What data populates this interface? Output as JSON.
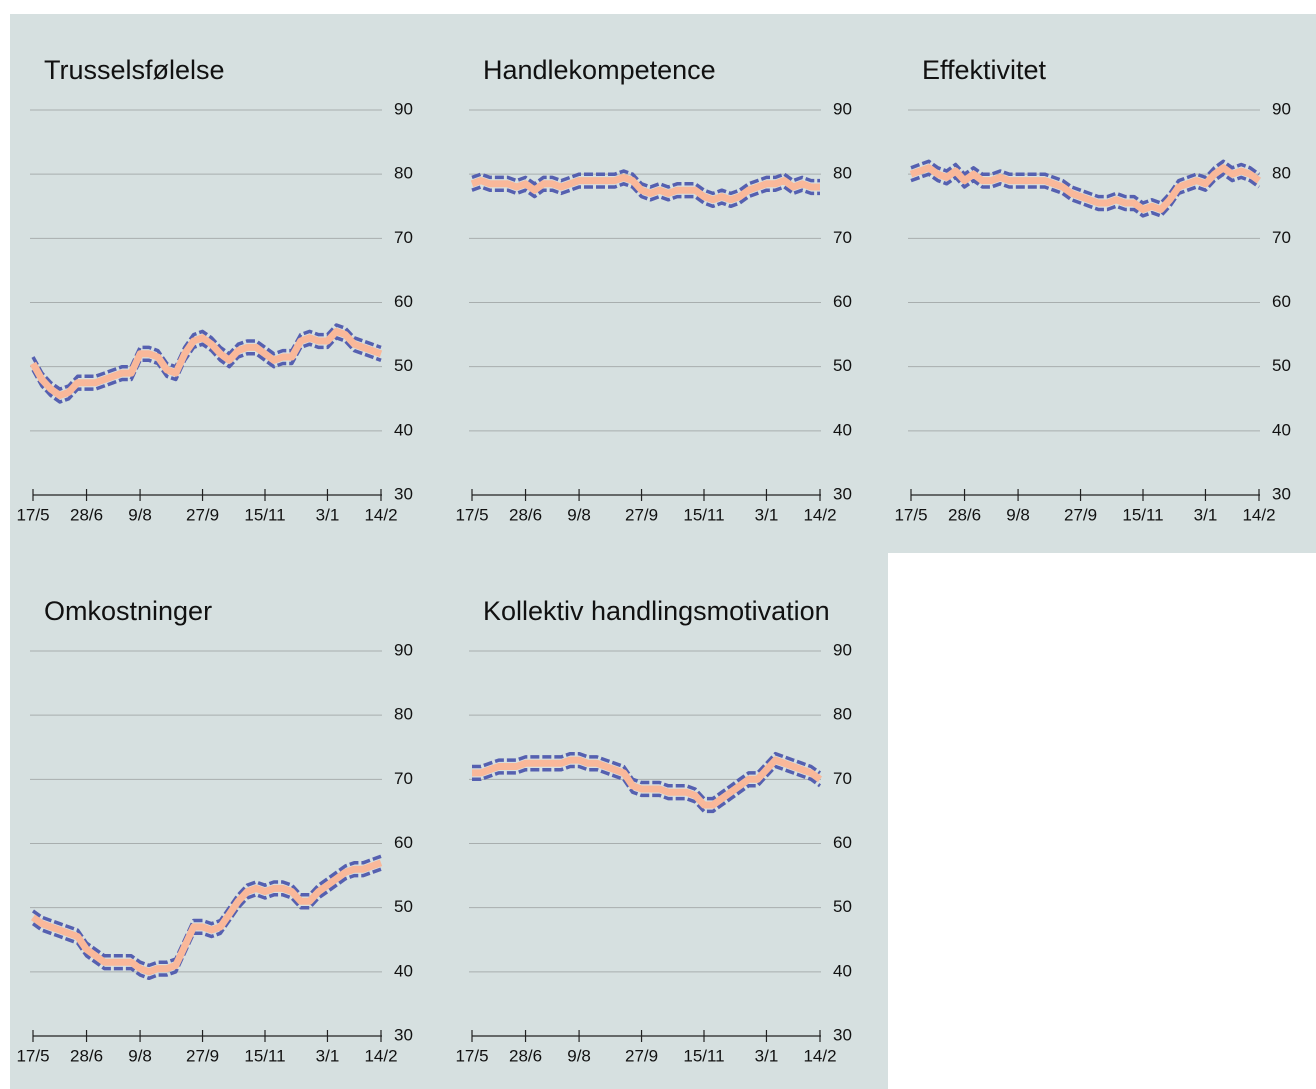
{
  "chart_data": [
    {
      "type": "line",
      "title": "Trusselsfølelse",
      "categories": [
        "17/5",
        null,
        null,
        null,
        null,
        null,
        "28/6",
        null,
        null,
        null,
        null,
        null,
        "9/8",
        null,
        null,
        null,
        null,
        null,
        null,
        "27/9",
        null,
        null,
        null,
        null,
        null,
        null,
        "15/11",
        null,
        null,
        null,
        null,
        null,
        null,
        "3/1",
        null,
        null,
        null,
        null,
        null,
        "14/2"
      ],
      "series": [
        {
          "color": "#5560b0",
          "style": "dashed",
          "values": [
            51.5,
            49,
            47.5,
            46.5,
            47,
            48.5,
            48.5,
            48.5,
            49,
            49.5,
            50,
            50,
            53,
            53,
            52.5,
            50.5,
            50,
            53,
            55,
            55.5,
            54.5,
            53,
            52,
            53.5,
            54,
            54,
            53,
            52,
            52.5,
            52.5,
            55,
            55.5,
            55,
            55,
            56.5,
            56,
            54.5,
            54,
            53.5,
            53
          ]
        },
        {
          "color": "#5560b0",
          "style": "dashed",
          "values": [
            49.5,
            47,
            45.5,
            44.5,
            45,
            46.5,
            46.5,
            46.5,
            47,
            47.5,
            48,
            48,
            51,
            51,
            50.5,
            48.5,
            48,
            51,
            53,
            53.5,
            52.5,
            51,
            50,
            51.5,
            52,
            52,
            51,
            50,
            50.5,
            50.5,
            53,
            53.5,
            53,
            53,
            54.5,
            54,
            52.5,
            52,
            51.5,
            51
          ]
        },
        {
          "color": "#f9b89a",
          "style": "solid",
          "values": [
            50.5,
            48,
            46.5,
            45.5,
            46,
            47.5,
            47.5,
            47.5,
            48,
            48.5,
            49,
            49,
            52,
            52,
            51.5,
            49.5,
            49,
            52,
            54,
            54.5,
            53.5,
            52,
            51,
            52.5,
            53,
            53,
            52,
            51,
            51.5,
            51.5,
            54,
            54.5,
            54,
            54,
            55.5,
            55,
            53.5,
            53,
            52.5,
            52
          ]
        }
      ],
      "ylim": [
        30,
        90
      ],
      "yticks": [
        30,
        40,
        50,
        60,
        70,
        80,
        90
      ],
      "grid": true
    },
    {
      "type": "line",
      "title": "Handlekompetence",
      "categories": [
        "17/5",
        null,
        null,
        null,
        null,
        null,
        "28/6",
        null,
        null,
        null,
        null,
        null,
        "9/8",
        null,
        null,
        null,
        null,
        null,
        null,
        "27/9",
        null,
        null,
        null,
        null,
        null,
        null,
        "15/11",
        null,
        null,
        null,
        null,
        null,
        null,
        "3/1",
        null,
        null,
        null,
        null,
        null,
        "14/2"
      ],
      "series": [
        {
          "color": "#5560b0",
          "style": "dashed",
          "values": [
            79.5,
            80,
            79.5,
            79.5,
            79.5,
            79,
            79.5,
            78.5,
            79.5,
            79.5,
            79,
            79.5,
            80,
            80,
            80,
            80,
            80,
            80.5,
            80,
            78.5,
            78,
            78.5,
            78,
            78.5,
            78.5,
            78.5,
            77.5,
            77,
            77.5,
            77,
            77.5,
            78.5,
            79,
            79.5,
            79.5,
            80,
            79,
            79.5,
            79,
            79
          ]
        },
        {
          "color": "#5560b0",
          "style": "dashed",
          "values": [
            77.5,
            78,
            77.5,
            77.5,
            77.5,
            77,
            77.5,
            76.5,
            77.5,
            77.5,
            77,
            77.5,
            78,
            78,
            78,
            78,
            78,
            78.5,
            78,
            76.5,
            76,
            76.5,
            76,
            76.5,
            76.5,
            76.5,
            75.5,
            75,
            75.5,
            75,
            75.5,
            76.5,
            77,
            77.5,
            77.5,
            78,
            77,
            77.5,
            77,
            77
          ]
        },
        {
          "color": "#f9b89a",
          "style": "solid",
          "values": [
            78.5,
            79,
            78.5,
            78.5,
            78.5,
            78,
            78.5,
            77.5,
            78.5,
            78.5,
            78,
            78.5,
            79,
            79,
            79,
            79,
            79,
            79.5,
            79,
            77.5,
            77,
            77.5,
            77,
            77.5,
            77.5,
            77.5,
            76.5,
            76,
            76.5,
            76,
            76.5,
            77.5,
            78,
            78.5,
            78.5,
            79,
            78,
            78.5,
            78,
            78
          ]
        }
      ],
      "ylim": [
        30,
        90
      ],
      "yticks": [
        30,
        40,
        50,
        60,
        70,
        80,
        90
      ],
      "grid": true
    },
    {
      "type": "line",
      "title": "Effektivitet",
      "categories": [
        "17/5",
        null,
        null,
        null,
        null,
        null,
        "28/6",
        null,
        null,
        null,
        null,
        null,
        "9/8",
        null,
        null,
        null,
        null,
        null,
        null,
        "27/9",
        null,
        null,
        null,
        null,
        null,
        null,
        "15/11",
        null,
        null,
        null,
        null,
        null,
        null,
        "3/1",
        null,
        null,
        null,
        null,
        null,
        "14/2"
      ],
      "series": [
        {
          "color": "#5560b0",
          "style": "dashed",
          "values": [
            81,
            81.5,
            82,
            81,
            80.5,
            81.5,
            80,
            81,
            80,
            80,
            80.5,
            80,
            80,
            80,
            80,
            80,
            79.5,
            79,
            78,
            77.5,
            77,
            76.5,
            76.5,
            77,
            76.5,
            76.5,
            75.5,
            76,
            75.5,
            77,
            79,
            79.5,
            80,
            79.5,
            81,
            82,
            81,
            81.5,
            81,
            80
          ]
        },
        {
          "color": "#5560b0",
          "style": "dashed",
          "values": [
            79,
            79.5,
            80,
            79,
            78.5,
            79.5,
            78,
            79,
            78,
            78,
            78.5,
            78,
            78,
            78,
            78,
            78,
            77.5,
            77,
            76,
            75.5,
            75,
            74.5,
            74.5,
            75,
            74.5,
            74.5,
            73.5,
            74,
            73.5,
            75,
            77,
            77.5,
            78,
            77.5,
            79,
            80,
            79,
            79.5,
            79,
            78
          ]
        },
        {
          "color": "#f9b89a",
          "style": "solid",
          "values": [
            80,
            80.5,
            81,
            80,
            79.5,
            80.5,
            79,
            80,
            79,
            79,
            79.5,
            79,
            79,
            79,
            79,
            79,
            78.5,
            78,
            77,
            76.5,
            76,
            75.5,
            75.5,
            76,
            75.5,
            75.5,
            74.5,
            75,
            74.5,
            76,
            78,
            78.5,
            79,
            78.5,
            80,
            81,
            80,
            80.5,
            80,
            79
          ]
        }
      ],
      "ylim": [
        30,
        90
      ],
      "yticks": [
        30,
        40,
        50,
        60,
        70,
        80,
        90
      ],
      "grid": true
    },
    {
      "type": "line",
      "title": "Omkostninger",
      "categories": [
        "17/5",
        null,
        null,
        null,
        null,
        null,
        "28/6",
        null,
        null,
        null,
        null,
        null,
        "9/8",
        null,
        null,
        null,
        null,
        null,
        null,
        "27/9",
        null,
        null,
        null,
        null,
        null,
        null,
        "15/11",
        null,
        null,
        null,
        null,
        null,
        null,
        "3/1",
        null,
        null,
        null,
        null,
        null,
        "14/2"
      ],
      "series": [
        {
          "color": "#5560b0",
          "style": "dashed",
          "values": [
            49.5,
            48.5,
            48,
            47.5,
            47,
            46.5,
            44.5,
            43.5,
            42.5,
            42.5,
            42.5,
            42.5,
            41.5,
            41,
            41.5,
            41.5,
            42,
            45,
            48,
            48,
            47.5,
            48,
            50,
            52,
            53.5,
            54,
            53.5,
            54,
            54,
            53.5,
            52,
            52,
            53.5,
            54.5,
            55.5,
            56.5,
            57,
            57,
            57.5,
            58
          ]
        },
        {
          "color": "#5560b0",
          "style": "dashed",
          "values": [
            47.5,
            46.5,
            46,
            45.5,
            45,
            44.5,
            42.5,
            41.5,
            40.5,
            40.5,
            40.5,
            40.5,
            39.5,
            39,
            39.5,
            39.5,
            40,
            43,
            46,
            46,
            45.5,
            46,
            48,
            50,
            51.5,
            52,
            51.5,
            52,
            52,
            51.5,
            50,
            50,
            51.5,
            52.5,
            53.5,
            54.5,
            55,
            55,
            55.5,
            56
          ]
        },
        {
          "color": "#f9b89a",
          "style": "solid",
          "values": [
            48.5,
            47.5,
            47,
            46.5,
            46,
            45.5,
            43.5,
            42.5,
            41.5,
            41.5,
            41.5,
            41.5,
            40.5,
            40,
            40.5,
            40.5,
            41,
            44,
            47,
            47,
            46.5,
            47,
            49,
            51,
            52.5,
            53,
            52.5,
            53,
            53,
            52.5,
            51,
            51,
            52.5,
            53.5,
            54.5,
            55.5,
            56,
            56,
            56.5,
            57
          ]
        }
      ],
      "ylim": [
        30,
        90
      ],
      "yticks": [
        30,
        40,
        50,
        60,
        70,
        80,
        90
      ],
      "grid": true
    },
    {
      "type": "line",
      "title": "Kollektiv handlingsmotivation",
      "categories": [
        "17/5",
        null,
        null,
        null,
        null,
        null,
        "28/6",
        null,
        null,
        null,
        null,
        null,
        "9/8",
        null,
        null,
        null,
        null,
        null,
        null,
        "27/9",
        null,
        null,
        null,
        null,
        null,
        null,
        "15/11",
        null,
        null,
        null,
        null,
        null,
        null,
        "3/1",
        null,
        null,
        null,
        null,
        null,
        "14/2"
      ],
      "series": [
        {
          "color": "#5560b0",
          "style": "dashed",
          "values": [
            72,
            72,
            72.5,
            73,
            73,
            73,
            73.5,
            73.5,
            73.5,
            73.5,
            73.5,
            74,
            74,
            73.5,
            73.5,
            73,
            72.5,
            72,
            70,
            69.5,
            69.5,
            69.5,
            69,
            69,
            69,
            68.5,
            67,
            67,
            68,
            69,
            70,
            71,
            71,
            72.5,
            74,
            73.5,
            73,
            72.5,
            72,
            71
          ]
        },
        {
          "color": "#5560b0",
          "style": "dashed",
          "values": [
            70,
            70,
            70.5,
            71,
            71,
            71,
            71.5,
            71.5,
            71.5,
            71.5,
            71.5,
            72,
            72,
            71.5,
            71.5,
            71,
            70.5,
            70,
            68,
            67.5,
            67.5,
            67.5,
            67,
            67,
            67,
            66.5,
            65,
            65,
            66,
            67,
            68,
            69,
            69,
            70.5,
            72,
            71.5,
            71,
            70.5,
            70,
            69
          ]
        },
        {
          "color": "#f9b89a",
          "style": "solid",
          "values": [
            71,
            71,
            71.5,
            72,
            72,
            72,
            72.5,
            72.5,
            72.5,
            72.5,
            72.5,
            73,
            73,
            72.5,
            72.5,
            72,
            71.5,
            71,
            69,
            68.5,
            68.5,
            68.5,
            68,
            68,
            68,
            67.5,
            66,
            66,
            67,
            68,
            69,
            70,
            70,
            71.5,
            73,
            72.5,
            72,
            71.5,
            71,
            70
          ]
        }
      ],
      "ylim": [
        30,
        90
      ],
      "yticks": [
        30,
        40,
        50,
        60,
        70,
        80,
        90
      ],
      "grid": true
    }
  ]
}
